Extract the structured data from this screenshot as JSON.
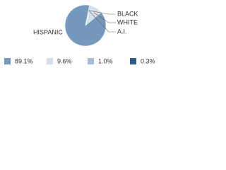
{
  "chart_data": {
    "type": "pie",
    "categories": [
      "HISPANIC",
      "WHITE",
      "BLACK",
      "A.I."
    ],
    "values": [
      89.1,
      9.6,
      1.0,
      0.3
    ],
    "value_labels": [
      "89.1%",
      "9.6%",
      "1.0%",
      "0.3%"
    ],
    "colors": [
      "#7598bd",
      "#d5e0ea",
      "#a7bdd3",
      "#2d5a86"
    ]
  }
}
